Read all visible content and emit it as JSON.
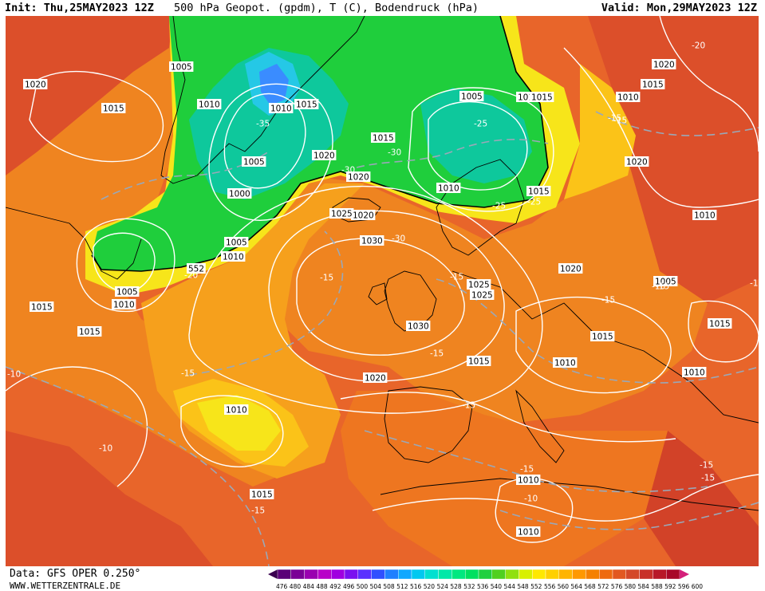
{
  "header": {
    "init": "Init: Thu,25MAY2023 12Z",
    "title": "500 hPa Geopot. (gpdm), T (C), Bodendruck (hPa)",
    "valid": "Valid: Mon,29MAY2023 12Z"
  },
  "footer": {
    "source": "Data: GFS OPER 0.250°",
    "site": "WWW.WETTERZENTRALE.DE"
  },
  "legend": {
    "values": [
      "476",
      "480",
      "484",
      "488",
      "492",
      "496",
      "500",
      "504",
      "508",
      "512",
      "516",
      "520",
      "524",
      "528",
      "532",
      "536",
      "540",
      "544",
      "548",
      "552",
      "556",
      "560",
      "564",
      "568",
      "572",
      "576",
      "580",
      "584",
      "588",
      "592",
      "596",
      "600"
    ],
    "colors": [
      "#3a0050",
      "#5a0078",
      "#7a0096",
      "#9a00b0",
      "#b800c8",
      "#a000e0",
      "#7a10f0",
      "#5a30ff",
      "#3050ff",
      "#2080ff",
      "#10a8ff",
      "#00c8f0",
      "#00e0d0",
      "#00e8a8",
      "#00e880",
      "#00e060",
      "#20d040",
      "#50d020",
      "#90e010",
      "#d8f000",
      "#ffe800",
      "#ffd000",
      "#ffb400",
      "#ff9800",
      "#f58000",
      "#ee6a10",
      "#e25820",
      "#d44828",
      "#c83028",
      "#b81828",
      "#a80828",
      "#d4207a"
    ]
  },
  "map": {
    "colors": {
      "deep_red": "#c9372a",
      "red": "#dc4f2a",
      "orange_red": "#e8652a",
      "orange": "#ef8420",
      "light_orange": "#f6a01c",
      "yellow_orange": "#fbc318",
      "yellow": "#f7e51a",
      "green": "#1fce3c",
      "teal": "#0ec89c",
      "cyan": "#25c8e6",
      "blue": "#3a8cff",
      "contour": "#ffffff",
      "temp_line": "#9aa8b8"
    },
    "labels": [
      {
        "text": "1005",
        "kind": "p"
      },
      {
        "text": "1020",
        "kind": "p"
      },
      {
        "text": "1015",
        "kind": "p"
      },
      {
        "text": "1010",
        "kind": "p"
      },
      {
        "text": "1010",
        "kind": "p"
      },
      {
        "text": "1015",
        "kind": "p"
      },
      {
        "text": "-35",
        "kind": "t"
      },
      {
        "text": "1020",
        "kind": "p"
      },
      {
        "text": "1005",
        "kind": "p"
      },
      {
        "text": "-25",
        "kind": "t"
      },
      {
        "text": "1015",
        "kind": "p"
      },
      {
        "text": "-30",
        "kind": "t"
      },
      {
        "text": "1005",
        "kind": "p"
      },
      {
        "text": "-30",
        "kind": "t"
      },
      {
        "text": "1000",
        "kind": "p"
      },
      {
        "text": "1020",
        "kind": "p"
      },
      {
        "text": "1010",
        "kind": "p"
      },
      {
        "text": "1015",
        "kind": "p"
      },
      {
        "text": "-25",
        "kind": "t"
      },
      {
        "text": "1015",
        "kind": "p"
      },
      {
        "text": "-25",
        "kind": "t"
      },
      {
        "text": "1020",
        "kind": "p"
      },
      {
        "text": "1025",
        "kind": "p"
      },
      {
        "text": "1005",
        "kind": "p"
      },
      {
        "text": "1010",
        "kind": "p"
      },
      {
        "text": "-20",
        "kind": "t"
      },
      {
        "text": "1030",
        "kind": "p"
      },
      {
        "text": "-15",
        "kind": "t"
      },
      {
        "text": "1005",
        "kind": "p"
      },
      {
        "text": "1010",
        "kind": "p"
      },
      {
        "text": "1015",
        "kind": "p"
      },
      {
        "text": "1015",
        "kind": "p"
      },
      {
        "text": "-10",
        "kind": "t"
      },
      {
        "text": "-15",
        "kind": "t"
      },
      {
        "text": "1030",
        "kind": "p"
      },
      {
        "text": "-15",
        "kind": "t"
      },
      {
        "text": "1025",
        "kind": "p"
      },
      {
        "text": "1020",
        "kind": "p"
      },
      {
        "text": "-15",
        "kind": "t"
      },
      {
        "text": "1015",
        "kind": "p"
      },
      {
        "text": "1020",
        "kind": "p"
      },
      {
        "text": "1010",
        "kind": "p"
      },
      {
        "text": "-15",
        "kind": "t"
      },
      {
        "text": "-10",
        "kind": "t"
      },
      {
        "text": "1015",
        "kind": "p"
      },
      {
        "text": "-15",
        "kind": "t"
      },
      {
        "text": "-30",
        "kind": "t"
      },
      {
        "text": "1015",
        "kind": "p"
      },
      {
        "text": "-15",
        "kind": "t"
      },
      {
        "text": "1010",
        "kind": "p"
      },
      {
        "text": "-15",
        "kind": "t"
      },
      {
        "text": "1015",
        "kind": "p"
      },
      {
        "text": "1010",
        "kind": "p"
      },
      {
        "text": "1010",
        "kind": "p"
      },
      {
        "text": "-15",
        "kind": "t"
      },
      {
        "text": "-15",
        "kind": "t"
      },
      {
        "text": "1010",
        "kind": "p"
      },
      {
        "text": "-10",
        "kind": "t"
      },
      {
        "text": "1010",
        "kind": "p"
      },
      {
        "text": "-10",
        "kind": "t"
      },
      {
        "text": "1005",
        "kind": "p"
      },
      {
        "text": "1020",
        "kind": "p"
      },
      {
        "text": "1015",
        "kind": "p"
      },
      {
        "text": "-20",
        "kind": "t"
      },
      {
        "text": "1010",
        "kind": "p"
      },
      {
        "text": "1020",
        "kind": "p"
      },
      {
        "text": "1015",
        "kind": "p"
      },
      {
        "text": "-15",
        "kind": "t"
      },
      {
        "text": "-10",
        "kind": "t"
      },
      {
        "text": "-15",
        "kind": "t"
      },
      {
        "text": "552",
        "kind": "g"
      },
      {
        "text": "-15",
        "kind": "t"
      },
      {
        "text": "1025",
        "kind": "p"
      }
    ]
  }
}
